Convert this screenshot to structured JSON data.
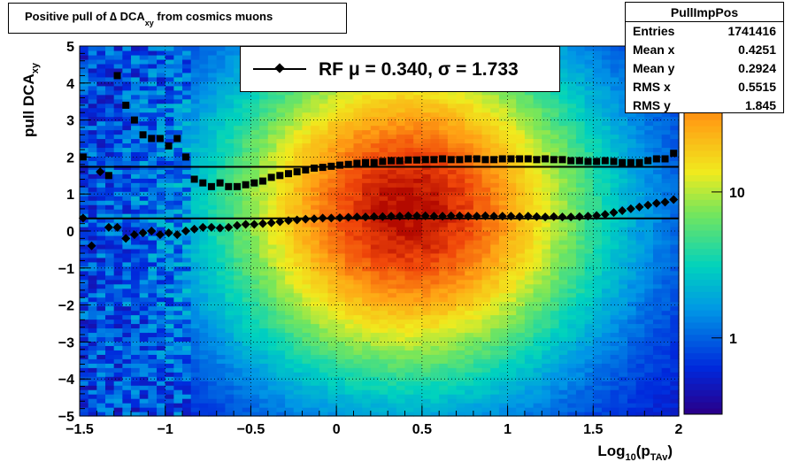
{
  "title": {
    "main": "Positive pull of ∆ DCA",
    "sub": "xy",
    "tail": " from cosmics muons"
  },
  "stats": {
    "name": "PullImpPos",
    "rows": [
      {
        "label": "Entries",
        "value": "1741416"
      },
      {
        "label": "Mean x",
        "value": "0.4251"
      },
      {
        "label": "Mean y",
        "value": "0.2924"
      },
      {
        "label": "RMS x",
        "value": "0.5515"
      },
      {
        "label": "RMS y",
        "value": "1.845"
      }
    ]
  },
  "legend": {
    "text": "RF μ =  0.340, σ =   1.733"
  },
  "colors": {
    "profile_markers": "#000000",
    "fit_lines": "#000000"
  },
  "chart_data": {
    "type": "heatmap",
    "xlabel": "Log10(pTAv)",
    "xlabel_main": "Log",
    "xlabel_sub1": "10",
    "xlabel_mid": "(p",
    "xlabel_sub2": "TAv",
    "xlabel_end": ")",
    "ylabel_main": "pull DCA",
    "ylabel_sub": "xy",
    "xlim": [
      -1.5,
      2
    ],
    "ylim": [
      -5,
      5
    ],
    "zscale": "log",
    "x_ticks": [
      "−1.5",
      "−1",
      "−0.5",
      "0",
      "0.5",
      "1",
      "1.5",
      "2"
    ],
    "x_tick_values": [
      -1.5,
      -1,
      -0.5,
      0,
      0.5,
      1,
      1.5,
      2
    ],
    "y_ticks": [
      "−5",
      "−4",
      "−3",
      "−2",
      "−1",
      "0",
      "1",
      "2",
      "3",
      "4",
      "5"
    ],
    "y_tick_values": [
      -5,
      -4,
      -3,
      -2,
      -1,
      0,
      1,
      2,
      3,
      4,
      5
    ],
    "z_ticks": [
      "1",
      "10"
    ],
    "z_tick_values": [
      1,
      10
    ],
    "grid": true,
    "hlines": [
      1.733,
      0.34
    ],
    "series": [
      {
        "marker": "square",
        "x": [
          -1.48,
          -1.33,
          -1.28,
          -1.23,
          -1.18,
          -1.13,
          -1.08,
          -1.03,
          -0.98,
          -0.93,
          -0.88,
          -0.83,
          -0.78,
          -0.73,
          -0.68,
          -0.63,
          -0.58,
          -0.53,
          -0.48,
          -0.43,
          -0.38,
          -0.33,
          -0.28,
          -0.23,
          -0.18,
          -0.13,
          -0.08,
          -0.03,
          0.02,
          0.07,
          0.12,
          0.17,
          0.22,
          0.27,
          0.32,
          0.37,
          0.42,
          0.47,
          0.52,
          0.57,
          0.62,
          0.67,
          0.72,
          0.77,
          0.82,
          0.87,
          0.92,
          0.97,
          1.02,
          1.07,
          1.12,
          1.17,
          1.22,
          1.27,
          1.32,
          1.37,
          1.42,
          1.47,
          1.52,
          1.57,
          1.62,
          1.67,
          1.72,
          1.77,
          1.82,
          1.87,
          1.92,
          1.97
        ],
        "y": [
          2.0,
          1.5,
          4.2,
          3.4,
          3.0,
          2.6,
          2.5,
          2.5,
          2.3,
          2.5,
          2.0,
          1.4,
          1.3,
          1.2,
          1.3,
          1.2,
          1.2,
          1.25,
          1.3,
          1.35,
          1.45,
          1.5,
          1.55,
          1.6,
          1.65,
          1.7,
          1.72,
          1.75,
          1.78,
          1.8,
          1.83,
          1.85,
          1.85,
          1.88,
          1.9,
          1.9,
          1.92,
          1.92,
          1.93,
          1.93,
          1.95,
          1.93,
          1.93,
          1.95,
          1.95,
          1.93,
          1.93,
          1.95,
          1.95,
          1.95,
          1.95,
          1.93,
          1.95,
          1.93,
          1.93,
          1.9,
          1.9,
          1.88,
          1.88,
          1.9,
          1.88,
          1.85,
          1.85,
          1.85,
          1.9,
          1.95,
          1.95,
          2.1
        ]
      },
      {
        "marker": "diamond",
        "x": [
          -1.48,
          -1.43,
          -1.38,
          -1.33,
          -1.28,
          -1.23,
          -1.18,
          -1.13,
          -1.08,
          -1.03,
          -0.98,
          -0.93,
          -0.88,
          -0.83,
          -0.78,
          -0.73,
          -0.68,
          -0.63,
          -0.58,
          -0.53,
          -0.48,
          -0.43,
          -0.38,
          -0.33,
          -0.28,
          -0.23,
          -0.18,
          -0.13,
          -0.08,
          -0.03,
          0.02,
          0.07,
          0.12,
          0.17,
          0.22,
          0.27,
          0.32,
          0.37,
          0.42,
          0.47,
          0.52,
          0.57,
          0.62,
          0.67,
          0.72,
          0.77,
          0.82,
          0.87,
          0.92,
          0.97,
          1.02,
          1.07,
          1.12,
          1.17,
          1.22,
          1.27,
          1.32,
          1.37,
          1.42,
          1.47,
          1.52,
          1.57,
          1.62,
          1.67,
          1.72,
          1.77,
          1.82,
          1.87,
          1.92,
          1.97
        ],
        "y": [
          0.35,
          -0.4,
          1.6,
          0.1,
          0.1,
          -0.2,
          -0.1,
          -0.05,
          0.0,
          -0.1,
          -0.05,
          -0.1,
          0.0,
          0.05,
          0.1,
          0.1,
          0.08,
          0.1,
          0.15,
          0.18,
          0.18,
          0.2,
          0.22,
          0.25,
          0.28,
          0.3,
          0.32,
          0.33,
          0.35,
          0.35,
          0.36,
          0.37,
          0.38,
          0.38,
          0.39,
          0.39,
          0.4,
          0.4,
          0.41,
          0.41,
          0.41,
          0.4,
          0.4,
          0.41,
          0.41,
          0.4,
          0.4,
          0.41,
          0.4,
          0.4,
          0.4,
          0.39,
          0.4,
          0.39,
          0.38,
          0.39,
          0.38,
          0.38,
          0.39,
          0.4,
          0.42,
          0.45,
          0.5,
          0.55,
          0.6,
          0.65,
          0.7,
          0.75,
          0.78,
          0.85
        ]
      }
    ]
  }
}
